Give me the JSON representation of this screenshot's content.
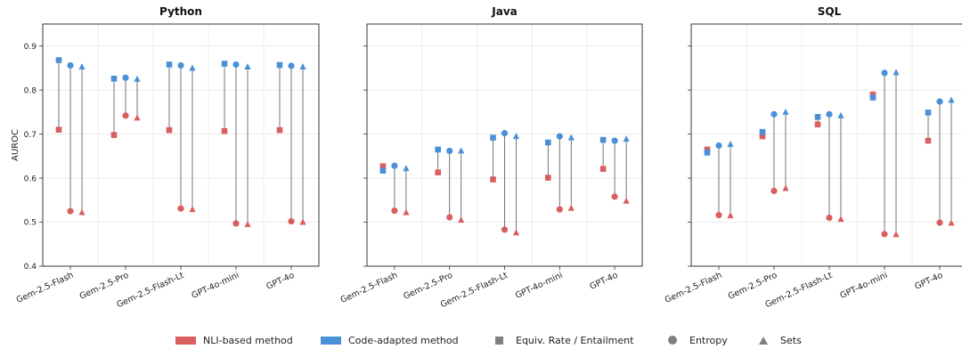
{
  "colors": {
    "nli": "#d95f5f",
    "code": "#4a90d9",
    "line": "#666666",
    "marker": "#7f7f7f"
  },
  "legend": {
    "nli": "NLI-based method",
    "code": "Code-adapted method",
    "equiv": "Equiv. Rate / Entailment",
    "entropy": "Entropy",
    "sets": "Sets"
  },
  "chart_data": [
    {
      "type": "scatter",
      "title": "Python",
      "ylabel": "AUROC",
      "ylim": [
        0.4,
        0.95
      ],
      "yticks": [
        "0.4",
        "0.5",
        "0.6",
        "0.7",
        "0.8",
        "0.9"
      ],
      "categories": [
        "Gem-2.5-Flash",
        "Gem-2.5-Pro",
        "Gem-2.5-Flash-Lt",
        "GPT-4o-mini",
        "GPT-4o"
      ],
      "series": [
        {
          "method": "NLI-based method",
          "metric": "Equiv. Rate / Entailment",
          "values": [
            0.71,
            0.698,
            0.709,
            0.707,
            0.709
          ]
        },
        {
          "method": "Code-adapted method",
          "metric": "Equiv. Rate / Entailment",
          "values": [
            0.868,
            0.826,
            0.858,
            0.86,
            0.857
          ]
        },
        {
          "method": "NLI-based method",
          "metric": "Entropy",
          "values": [
            0.525,
            0.742,
            0.531,
            0.497,
            0.502
          ]
        },
        {
          "method": "Code-adapted method",
          "metric": "Entropy",
          "values": [
            0.856,
            0.828,
            0.856,
            0.858,
            0.855
          ]
        },
        {
          "method": "NLI-based method",
          "metric": "Sets",
          "values": [
            0.522,
            0.737,
            0.529,
            0.495,
            0.5
          ]
        },
        {
          "method": "Code-adapted method",
          "metric": "Sets",
          "values": [
            0.853,
            0.825,
            0.85,
            0.853,
            0.853
          ]
        }
      ]
    },
    {
      "type": "scatter",
      "title": "Java",
      "ylabel": "",
      "ylim": [
        0.4,
        0.95
      ],
      "yticks": [
        "0.4",
        "0.5",
        "0.6",
        "0.7",
        "0.8",
        "0.9"
      ],
      "categories": [
        "Gem-2.5-Flash",
        "Gem-2.5-Pro",
        "Gem-2.5-Flash-Lt",
        "GPT-4o-mini",
        "GPT-4o"
      ],
      "series": [
        {
          "method": "NLI-based method",
          "metric": "Equiv. Rate / Entailment",
          "values": [
            0.627,
            0.613,
            0.597,
            0.601,
            0.621
          ]
        },
        {
          "method": "Code-adapted method",
          "metric": "Equiv. Rate / Entailment",
          "values": [
            0.617,
            0.665,
            0.692,
            0.681,
            0.687
          ]
        },
        {
          "method": "NLI-based method",
          "metric": "Entropy",
          "values": [
            0.526,
            0.511,
            0.483,
            0.529,
            0.558
          ]
        },
        {
          "method": "Code-adapted method",
          "metric": "Entropy",
          "values": [
            0.628,
            0.662,
            0.702,
            0.695,
            0.685
          ]
        },
        {
          "method": "NLI-based method",
          "metric": "Sets",
          "values": [
            0.522,
            0.505,
            0.476,
            0.532,
            0.548
          ]
        },
        {
          "method": "Code-adapted method",
          "metric": "Sets",
          "values": [
            0.622,
            0.662,
            0.695,
            0.692,
            0.689
          ]
        }
      ]
    },
    {
      "type": "scatter",
      "title": "SQL",
      "ylabel": "",
      "ylim": [
        0.4,
        0.95
      ],
      "yticks": [
        "0.4",
        "0.5",
        "0.6",
        "0.7",
        "0.8",
        "0.9"
      ],
      "categories": [
        "Gem-2.5-Flash",
        "Gem-2.5-Pro",
        "Gem-2.5-Flash-Lt",
        "GPT-4o-mini",
        "GPT-4o"
      ],
      "series": [
        {
          "method": "NLI-based method",
          "metric": "Equiv. Rate / Entailment",
          "values": [
            0.665,
            0.695,
            0.722,
            0.79,
            0.685
          ]
        },
        {
          "method": "Code-adapted method",
          "metric": "Equiv. Rate / Entailment",
          "values": [
            0.658,
            0.705,
            0.739,
            0.783,
            0.749
          ]
        },
        {
          "method": "NLI-based method",
          "metric": "Entropy",
          "values": [
            0.516,
            0.571,
            0.51,
            0.473,
            0.499
          ]
        },
        {
          "method": "Code-adapted method",
          "metric": "Entropy",
          "values": [
            0.674,
            0.745,
            0.745,
            0.839,
            0.774
          ]
        },
        {
          "method": "NLI-based method",
          "metric": "Sets",
          "values": [
            0.515,
            0.577,
            0.507,
            0.472,
            0.498
          ]
        },
        {
          "method": "Code-adapted method",
          "metric": "Sets",
          "values": [
            0.677,
            0.75,
            0.742,
            0.84,
            0.777
          ]
        }
      ]
    }
  ]
}
